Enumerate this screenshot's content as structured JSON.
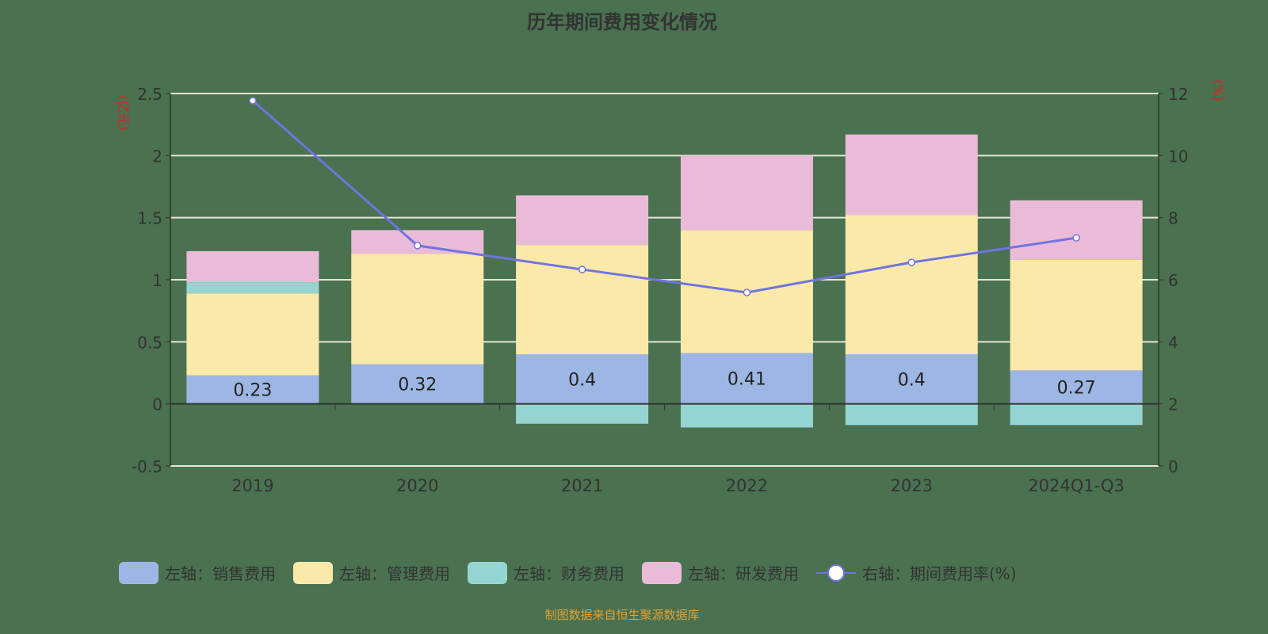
{
  "chart_data": {
    "type": "bar",
    "title": "历年期间费用变化情况",
    "categories": [
      "2019",
      "2020",
      "2021",
      "2022",
      "2023",
      "2024Q1-Q3"
    ],
    "left_axis": {
      "unit": "(亿元)",
      "range": [
        -0.5,
        2.5
      ],
      "ticks": [
        "-0.5",
        "0",
        "0.5",
        "1",
        "1.5",
        "2",
        "2.5"
      ]
    },
    "right_axis": {
      "unit": "(%)",
      "range": [
        0,
        12
      ],
      "ticks": [
        "0",
        "2",
        "4",
        "6",
        "8",
        "10",
        "12"
      ]
    },
    "grid": true,
    "legend_position": "bottom",
    "series": [
      {
        "name": "左轴：销售费用",
        "type": "bar",
        "stack": true,
        "color": "#9db6e3",
        "values": [
          0.23,
          0.32,
          0.4,
          0.41,
          0.4,
          0.27
        ],
        "labels": [
          "0.23",
          "0.32",
          "0.4",
          "0.41",
          "0.4",
          "0.27"
        ]
      },
      {
        "name": "左轴：管理费用",
        "type": "bar",
        "stack": true,
        "color": "#fbe9a9",
        "values": [
          0.66,
          0.89,
          0.88,
          0.99,
          1.12,
          0.89
        ]
      },
      {
        "name": "左轴：财务费用",
        "type": "bar",
        "stack": true,
        "color": "#96d4d2",
        "values": [
          0.09,
          0.0,
          -0.16,
          -0.19,
          -0.17,
          -0.17
        ]
      },
      {
        "name": "左轴：研发费用",
        "type": "bar",
        "stack": true,
        "color": "#e9bbd9",
        "values": [
          0.25,
          0.19,
          0.4,
          0.6,
          0.65,
          0.48
        ]
      },
      {
        "name": "右轴：期间费用率(%)",
        "type": "line",
        "axis": "right",
        "color": "#7174e0",
        "values": [
          11.77,
          7.1,
          6.33,
          5.59,
          6.56,
          7.35
        ]
      }
    ]
  },
  "source": "制图数据来自恒生聚源数据库"
}
